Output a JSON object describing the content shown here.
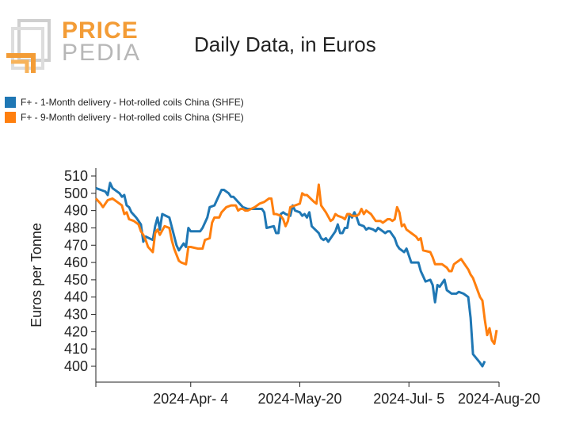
{
  "logo": {
    "word_top": "PRICE",
    "word_bottom": "PEDIA",
    "colors": {
      "orange": "#f39c36",
      "gray": "#b7b7b7"
    }
  },
  "chart_data": {
    "type": "line",
    "title": "Daily Data, in Euros",
    "xlabel": "",
    "ylabel": "Euros per Tonne",
    "ylim": [
      396,
      512
    ],
    "yticks": [
      400,
      410,
      420,
      430,
      440,
      450,
      460,
      470,
      480,
      490,
      500,
      510
    ],
    "xlim": [
      0,
      170
    ],
    "xticks": [
      {
        "x": 0,
        "label": ""
      },
      {
        "x": 40,
        "label": "2024-Apr- 4"
      },
      {
        "x": 86,
        "label": "2024-May-20"
      },
      {
        "x": 132,
        "label": "2024-Jul- 5"
      },
      {
        "x": 178,
        "label": "2024-Aug-20"
      }
    ],
    "legend_position": "top-left",
    "series": [
      {
        "name": "F+ - 1-Month delivery - Hot-rolled coils China (SHFE)",
        "color": "#1f77b4",
        "points": [
          [
            0,
            503
          ],
          [
            4,
            501
          ],
          [
            5,
            499
          ],
          [
            6,
            506
          ],
          [
            7,
            503
          ],
          [
            10,
            500
          ],
          [
            11,
            498
          ],
          [
            12,
            499
          ],
          [
            13,
            493
          ],
          [
            14,
            492
          ],
          [
            15,
            489
          ],
          [
            17,
            486
          ],
          [
            19,
            482
          ],
          [
            20,
            472
          ],
          [
            21,
            475
          ],
          [
            24,
            473
          ],
          [
            25,
            481
          ],
          [
            26,
            486
          ],
          [
            27,
            479
          ],
          [
            28,
            488
          ],
          [
            31,
            486
          ],
          [
            34,
            470
          ],
          [
            35,
            467
          ],
          [
            37,
            471
          ],
          [
            38,
            469
          ],
          [
            39,
            480
          ],
          [
            40,
            478
          ],
          [
            44,
            478
          ],
          [
            45,
            480
          ],
          [
            47,
            486
          ],
          [
            48,
            492
          ],
          [
            50,
            493
          ],
          [
            52,
            499
          ],
          [
            53,
            502
          ],
          [
            54,
            502
          ],
          [
            56,
            500
          ],
          [
            57,
            498
          ],
          [
            58,
            498
          ],
          [
            60,
            495
          ],
          [
            62,
            492
          ],
          [
            64,
            491
          ],
          [
            70,
            491
          ],
          [
            71,
            489
          ],
          [
            72,
            480
          ],
          [
            75,
            481
          ],
          [
            76,
            477
          ],
          [
            77,
            477
          ],
          [
            78,
            488
          ],
          [
            79,
            489
          ],
          [
            80,
            488
          ],
          [
            82,
            487
          ],
          [
            83,
            493
          ],
          [
            84,
            490
          ],
          [
            86,
            489
          ],
          [
            87,
            487
          ],
          [
            88,
            488
          ],
          [
            89,
            486
          ],
          [
            90,
            489
          ],
          [
            91,
            481
          ],
          [
            94,
            477
          ],
          [
            95,
            474
          ],
          [
            96,
            473
          ],
          [
            97,
            474
          ],
          [
            98,
            472
          ],
          [
            101,
            478
          ],
          [
            102,
            482
          ],
          [
            103,
            477
          ],
          [
            104,
            477
          ],
          [
            105,
            480
          ],
          [
            106,
            480
          ],
          [
            107,
            488
          ],
          [
            108,
            486
          ],
          [
            109,
            489
          ],
          [
            110,
            486
          ],
          [
            111,
            482
          ],
          [
            113,
            481
          ],
          [
            114,
            479
          ],
          [
            115,
            480
          ],
          [
            117,
            479
          ],
          [
            118,
            478
          ],
          [
            119,
            480
          ],
          [
            120,
            479
          ],
          [
            121,
            478
          ],
          [
            122,
            477
          ],
          [
            123,
            478
          ],
          [
            124,
            478
          ],
          [
            125,
            476
          ],
          [
            126,
            474
          ],
          [
            127,
            470
          ],
          [
            128,
            468
          ],
          [
            130,
            466
          ],
          [
            131,
            468
          ],
          [
            132,
            464
          ],
          [
            133,
            460
          ],
          [
            136,
            460
          ],
          [
            137,
            455
          ],
          [
            138,
            452
          ],
          [
            139,
            449
          ],
          [
            141,
            450
          ],
          [
            142,
            447
          ],
          [
            143,
            437
          ],
          [
            144,
            447
          ],
          [
            145,
            446
          ],
          [
            147,
            450
          ],
          [
            148,
            444
          ],
          [
            150,
            442
          ],
          [
            152,
            442
          ],
          [
            153,
            443
          ],
          [
            155,
            442
          ],
          [
            156,
            441
          ],
          [
            157,
            440
          ],
          [
            158,
            428
          ],
          [
            159,
            407
          ],
          [
            162,
            402
          ],
          [
            163,
            400
          ],
          [
            164,
            403
          ]
        ]
      },
      {
        "name": "F+ - 9-Month delivery - Hot-rolled coils China (SHFE)",
        "color": "#ff7f0e",
        "points": [
          [
            0,
            497
          ],
          [
            2,
            494
          ],
          [
            3,
            492
          ],
          [
            5,
            496
          ],
          [
            7,
            497
          ],
          [
            9,
            495
          ],
          [
            11,
            493
          ],
          [
            12,
            488
          ],
          [
            13,
            489
          ],
          [
            14,
            485
          ],
          [
            16,
            484
          ],
          [
            18,
            482
          ],
          [
            19,
            478
          ],
          [
            20,
            476
          ],
          [
            21,
            473
          ],
          [
            22,
            469
          ],
          [
            24,
            466
          ],
          [
            25,
            477
          ],
          [
            26,
            479
          ],
          [
            27,
            476
          ],
          [
            29,
            481
          ],
          [
            31,
            480
          ],
          [
            32,
            473
          ],
          [
            33,
            468
          ],
          [
            35,
            461
          ],
          [
            36,
            460
          ],
          [
            38,
            459
          ],
          [
            39,
            469
          ],
          [
            40,
            469
          ],
          [
            43,
            468
          ],
          [
            45,
            468
          ],
          [
            46,
            473
          ],
          [
            48,
            474
          ],
          [
            49,
            483
          ],
          [
            50,
            486
          ],
          [
            52,
            486
          ],
          [
            53,
            489
          ],
          [
            55,
            492
          ],
          [
            57,
            493
          ],
          [
            59,
            493
          ],
          [
            60,
            490
          ],
          [
            61,
            491
          ],
          [
            62,
            491
          ],
          [
            63,
            490
          ],
          [
            64,
            490
          ],
          [
            67,
            492
          ],
          [
            69,
            494
          ],
          [
            71,
            495
          ],
          [
            73,
            497
          ],
          [
            74,
            497
          ],
          [
            75,
            488
          ],
          [
            76,
            488
          ],
          [
            78,
            487
          ],
          [
            79,
            485
          ],
          [
            80,
            481
          ],
          [
            81,
            484
          ],
          [
            82,
            492
          ],
          [
            84,
            493
          ],
          [
            86,
            494
          ],
          [
            87,
            500
          ],
          [
            88,
            499
          ],
          [
            89,
            499
          ],
          [
            92,
            495
          ],
          [
            93,
            494
          ],
          [
            94,
            505
          ],
          [
            95,
            493
          ],
          [
            97,
            489
          ],
          [
            99,
            484
          ],
          [
            100,
            485
          ],
          [
            101,
            488
          ],
          [
            102,
            487
          ],
          [
            104,
            486
          ],
          [
            105,
            485
          ],
          [
            106,
            488
          ],
          [
            107,
            488
          ],
          [
            108,
            487
          ],
          [
            110,
            487
          ],
          [
            111,
            488
          ],
          [
            112,
            491
          ],
          [
            113,
            488
          ],
          [
            114,
            490
          ],
          [
            116,
            488
          ],
          [
            118,
            484
          ],
          [
            119,
            484
          ],
          [
            120,
            484
          ],
          [
            121,
            483
          ],
          [
            123,
            485
          ],
          [
            124,
            485
          ],
          [
            125,
            484
          ],
          [
            126,
            485
          ],
          [
            127,
            492
          ],
          [
            128,
            489
          ],
          [
            129,
            481
          ],
          [
            130,
            482
          ],
          [
            131,
            479
          ],
          [
            133,
            477
          ],
          [
            135,
            475
          ],
          [
            136,
            473
          ],
          [
            137,
            474
          ],
          [
            138,
            467
          ],
          [
            141,
            466
          ],
          [
            142,
            463
          ],
          [
            143,
            459
          ],
          [
            144,
            459
          ],
          [
            146,
            459
          ],
          [
            148,
            457
          ],
          [
            149,
            455
          ],
          [
            150,
            455
          ],
          [
            151,
            459
          ],
          [
            152,
            460
          ],
          [
            153,
            461
          ],
          [
            154,
            462
          ],
          [
            155,
            460
          ],
          [
            156,
            458
          ],
          [
            157,
            456
          ],
          [
            158,
            453
          ],
          [
            159,
            451
          ],
          [
            162,
            440
          ],
          [
            163,
            438
          ],
          [
            164,
            427
          ],
          [
            165,
            418
          ],
          [
            166,
            422
          ],
          [
            167,
            415
          ],
          [
            168,
            413
          ],
          [
            169,
            421
          ]
        ]
      }
    ]
  }
}
